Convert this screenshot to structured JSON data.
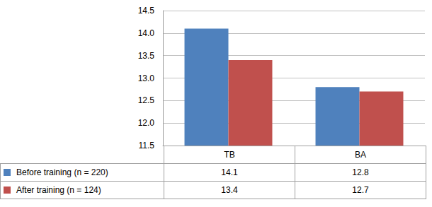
{
  "chart_data": {
    "type": "bar",
    "categories": [
      "TB",
      "BA"
    ],
    "series": [
      {
        "name": "Before training (n = 220)",
        "color": "#4f81bd",
        "values": [
          14.1,
          12.8
        ]
      },
      {
        "name": "After training (n = 124)",
        "color": "#c0504d",
        "values": [
          13.4,
          12.7
        ]
      }
    ],
    "ylim": [
      11.5,
      14.5
    ],
    "yticks": [
      11.5,
      {
        "value": 12,
        "label": "12.0"
      },
      12.5,
      {
        "value": 13,
        "label": "13.0"
      },
      13.5,
      {
        "value": 14,
        "label": "14.0"
      },
      14.5
    ],
    "grid": true
  }
}
